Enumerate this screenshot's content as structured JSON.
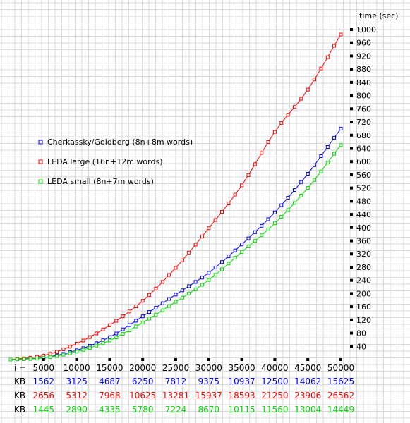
{
  "chart_data": {
    "type": "line",
    "ylabel": "time (sec)",
    "x_prefix": "i =",
    "ylim": [
      0,
      1000
    ],
    "xlim": [
      0,
      50000
    ],
    "y_ticks": [
      40,
      80,
      120,
      160,
      200,
      240,
      280,
      320,
      360,
      400,
      440,
      480,
      520,
      560,
      600,
      640,
      680,
      720,
      760,
      800,
      840,
      880,
      920,
      960,
      1000
    ],
    "x_ticks": [
      5000,
      10000,
      15000,
      20000,
      25000,
      30000,
      35000,
      40000,
      45000,
      50000
    ],
    "grid": true,
    "legend_position": "left",
    "series": [
      {
        "name": "Cherkassky/Goldberg (8n+8m words)",
        "color": "#0000ff",
        "row_label": "KB",
        "kb": [
          "1562",
          "3125",
          "4687",
          "6250",
          "7812",
          "9375",
          "10937",
          "12500",
          "14062",
          "15625"
        ],
        "x": [
          0,
          5000,
          10000,
          15000,
          20000,
          25000,
          30000,
          35000,
          40000,
          45000,
          50000
        ],
        "y": [
          0,
          6,
          28,
          68,
          131,
          197,
          263,
          349,
          446,
          563,
          700
        ]
      },
      {
        "name": "LEDA large (16n+12m words)",
        "color": "#ff0000",
        "row_label": "KB",
        "kb": [
          "2656",
          "5312",
          "7968",
          "10625",
          "13281",
          "15937",
          "18593",
          "21250",
          "23906",
          "26562"
        ],
        "x": [
          0,
          5000,
          10000,
          15000,
          20000,
          25000,
          30000,
          35000,
          40000,
          45000,
          50000
        ],
        "y": [
          0,
          12,
          48,
          104,
          178,
          278,
          398,
          528,
          690,
          818,
          985
        ]
      },
      {
        "name": "LEDA small (8n+7m words)",
        "color": "#00dd00",
        "row_label": "KB",
        "kb": [
          "1445",
          "2890",
          "4335",
          "5780",
          "7224",
          "8670",
          "10115",
          "11560",
          "13004",
          "14449"
        ],
        "x": [
          0,
          5000,
          10000,
          15000,
          20000,
          25000,
          30000,
          35000,
          40000,
          45000,
          50000
        ],
        "y": [
          0,
          5,
          24,
          58,
          112,
          175,
          241,
          326,
          413,
          520,
          650
        ]
      }
    ]
  }
}
